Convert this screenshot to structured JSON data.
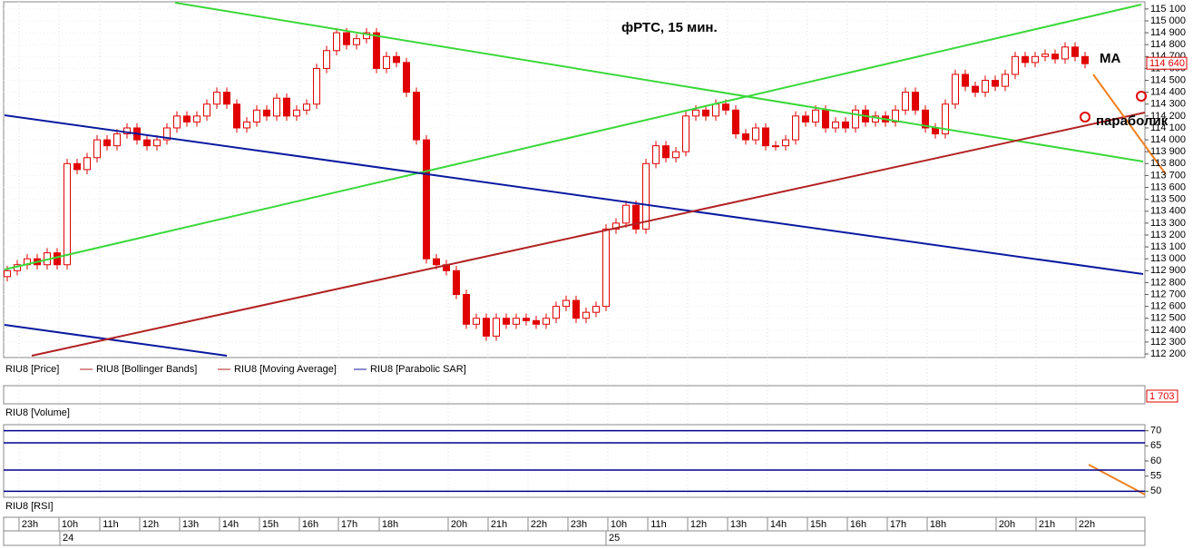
{
  "chart_data": {
    "type": "candlestick",
    "title": "фРТС, 15 мин.",
    "annotations": [
      "MA",
      "параболик"
    ],
    "open": [
      112850,
      112900,
      112950,
      113000,
      112950,
      113050,
      112950,
      113800,
      113750,
      113850,
      114000,
      113950,
      114050,
      114100,
      114000,
      113950,
      114000,
      114100,
      114200,
      114150,
      114200,
      114300,
      114400,
      114300,
      114100,
      114150,
      114250,
      114200,
      114350,
      114200,
      114250,
      114300,
      114600,
      114750,
      114900,
      114800,
      114850,
      114900,
      114600,
      114700,
      114650,
      114400,
      114000,
      113000,
      112950,
      112900,
      112700,
      112450,
      112500,
      112350,
      112500,
      112450,
      112500,
      112480,
      112450,
      112500,
      112600,
      112650,
      112500,
      112550,
      112600,
      113250,
      113300,
      113450,
      113250,
      113800,
      113950,
      113850,
      113900,
      114200,
      114250,
      114200,
      114300,
      114250,
      114050,
      114000,
      114100,
      113950,
      113950,
      114000,
      114200,
      114150,
      114250,
      114100,
      114150,
      114100,
      114250,
      114150,
      114200,
      114150,
      114250,
      114400,
      114250,
      114100,
      114050,
      114300,
      114550,
      114450,
      114400,
      114500,
      114450,
      114550,
      114700,
      114650,
      114700,
      114720,
      114680,
      114780,
      114700
    ],
    "high": [
      112940,
      112990,
      113040,
      113040,
      113090,
      113090,
      113840,
      113840,
      113890,
      114040,
      114040,
      114090,
      114140,
      114140,
      114040,
      114040,
      114140,
      114240,
      114240,
      114240,
      114340,
      114440,
      114440,
      114340,
      114190,
      114290,
      114290,
      114390,
      114390,
      114290,
      114340,
      114640,
      114790,
      114940,
      114940,
      114890,
      114940,
      114940,
      114740,
      114740,
      114690,
      114440,
      114040,
      113040,
      112990,
      112940,
      112740,
      112540,
      112540,
      112540,
      112540,
      112540,
      112540,
      112520,
      112540,
      112640,
      112690,
      112690,
      112590,
      112640,
      113290,
      113340,
      113490,
      113490,
      113840,
      113990,
      113990,
      113940,
      114240,
      114290,
      114290,
      114340,
      114340,
      114290,
      114090,
      114140,
      114140,
      113990,
      114040,
      114240,
      114240,
      114290,
      114290,
      114190,
      114190,
      114290,
      114290,
      114240,
      114240,
      114290,
      114440,
      114440,
      114290,
      114140,
      114340,
      114590,
      114590,
      114490,
      114540,
      114540,
      114590,
      114740,
      114740,
      114740,
      114760,
      114760,
      114820,
      114820,
      114740
    ],
    "low": [
      112810,
      112860,
      112910,
      112910,
      112910,
      112910,
      112910,
      113710,
      113710,
      113810,
      113910,
      113910,
      114010,
      113960,
      113910,
      113910,
      113960,
      114060,
      114110,
      114110,
      114160,
      114260,
      114260,
      114060,
      114060,
      114110,
      114160,
      114160,
      114160,
      114160,
      114210,
      114260,
      114560,
      114710,
      114760,
      114760,
      114810,
      114560,
      114560,
      114610,
      114360,
      113960,
      112960,
      112910,
      112860,
      112660,
      112410,
      112410,
      112310,
      112310,
      112410,
      112410,
      112440,
      112410,
      112410,
      112460,
      112560,
      112460,
      112460,
      112510,
      112560,
      113210,
      113260,
      113210,
      113210,
      113760,
      113810,
      113810,
      113860,
      114160,
      114160,
      114160,
      114210,
      114010,
      113960,
      113960,
      113910,
      113910,
      113910,
      113960,
      114110,
      114110,
      114060,
      114060,
      114060,
      114060,
      114110,
      114110,
      114110,
      114110,
      114210,
      114210,
      114060,
      114010,
      114010,
      114260,
      114410,
      114360,
      114360,
      114410,
      114410,
      114510,
      114610,
      114610,
      114660,
      114640,
      114640,
      114660,
      114600
    ],
    "close": [
      112900,
      112950,
      113000,
      112950,
      113050,
      112950,
      113800,
      113750,
      113850,
      114000,
      113950,
      114050,
      114100,
      114000,
      113950,
      114000,
      114100,
      114200,
      114150,
      114200,
      114300,
      114400,
      114300,
      114100,
      114150,
      114250,
      114200,
      114350,
      114200,
      114250,
      114300,
      114600,
      114750,
      114900,
      114800,
      114850,
      114900,
      114600,
      114700,
      114650,
      114400,
      114000,
      113000,
      112950,
      112900,
      112700,
      112450,
      112500,
      112350,
      112500,
      112450,
      112500,
      112480,
      112450,
      112500,
      112600,
      112650,
      112500,
      112550,
      112600,
      113250,
      113300,
      113450,
      113250,
      113800,
      113950,
      113850,
      113900,
      114200,
      114250,
      114200,
      114300,
      114250,
      114050,
      114000,
      114100,
      113950,
      113950,
      114000,
      114200,
      114150,
      114250,
      114100,
      114150,
      114100,
      114250,
      114150,
      114200,
      114150,
      114250,
      114400,
      114250,
      114100,
      114050,
      114300,
      114550,
      114450,
      114400,
      114500,
      114450,
      114550,
      114700,
      114650,
      114700,
      114720,
      114680,
      114780,
      114700,
      114640
    ],
    "color": "#e00000",
    "ylim": [
      112170,
      115160
    ],
    "yticks": [
      {
        "value": 112200,
        "label": "112 200"
      },
      {
        "value": 112300,
        "label": "112 300"
      },
      {
        "value": 112400,
        "label": "112 400"
      },
      {
        "value": 112500,
        "label": "112 500"
      },
      {
        "value": 112600,
        "label": "112 600"
      },
      {
        "value": 112700,
        "label": "112 700"
      },
      {
        "value": 112800,
        "label": "112 800"
      },
      {
        "value": 112900,
        "label": "112 900"
      },
      {
        "value": 113000,
        "label": "113 000"
      },
      {
        "value": 113100,
        "label": "113 100"
      },
      {
        "value": 113200,
        "label": "113 200"
      },
      {
        "value": 113300,
        "label": "113 300"
      },
      {
        "value": 113400,
        "label": "113 400"
      },
      {
        "value": 113500,
        "label": "113 500"
      },
      {
        "value": 113600,
        "label": "113 600"
      },
      {
        "value": 113700,
        "label": "113 700"
      },
      {
        "value": 113800,
        "label": "113 800"
      },
      {
        "value": 113900,
        "label": "113 900"
      },
      {
        "value": 114000,
        "label": "114 000"
      },
      {
        "value": 114100,
        "label": "114 100"
      },
      {
        "value": 114200,
        "label": "114 200"
      },
      {
        "value": 114300,
        "label": "114 300"
      },
      {
        "value": 114400,
        "label": "114 400"
      },
      {
        "value": 114500,
        "label": "114 500"
      },
      {
        "value": 114600,
        "label": "114 600"
      },
      {
        "value": 114700,
        "label": "114 700"
      },
      {
        "value": 114800,
        "label": "114 800"
      },
      {
        "value": 114900,
        "label": "114 900"
      },
      {
        "value": 115000,
        "label": "115 000"
      },
      {
        "value": 115100,
        "label": "115 100"
      }
    ],
    "last_price": {
      "value": 114640,
      "label": "114 640"
    },
    "legend": [
      {
        "name": "RIU8 [Price]"
      },
      {
        "name": "RIU8 [Bollinger Bands]",
        "color": "#b22222"
      },
      {
        "name": "RIU8 [Moving Average]",
        "color": "#b22222"
      },
      {
        "name": "RIU8 [Parabolic SAR]",
        "color": "#1a1a9c"
      }
    ],
    "volume_panel": {
      "title": "RIU8 [Volume]",
      "last": {
        "value": 1703,
        "label": "1 703"
      }
    },
    "rsi_panel": {
      "title": "RIU8 [RSI]",
      "ylim": [
        48,
        72
      ],
      "yticks": [
        50,
        55,
        60,
        65,
        70
      ],
      "levels": [
        70,
        66,
        57,
        50
      ],
      "level_color": "#00008b"
    },
    "time_labels": [
      "23h",
      "10h",
      "11h",
      "12h",
      "13h",
      "14h",
      "15h",
      "16h",
      "17h",
      "18h",
      "20h",
      "21h",
      "22h",
      "23h",
      "10h",
      "11h",
      "12h",
      "13h",
      "14h",
      "15h",
      "16h",
      "17h",
      "18h",
      "20h",
      "21h",
      "22h"
    ],
    "dates": [
      "24",
      "25"
    ]
  }
}
